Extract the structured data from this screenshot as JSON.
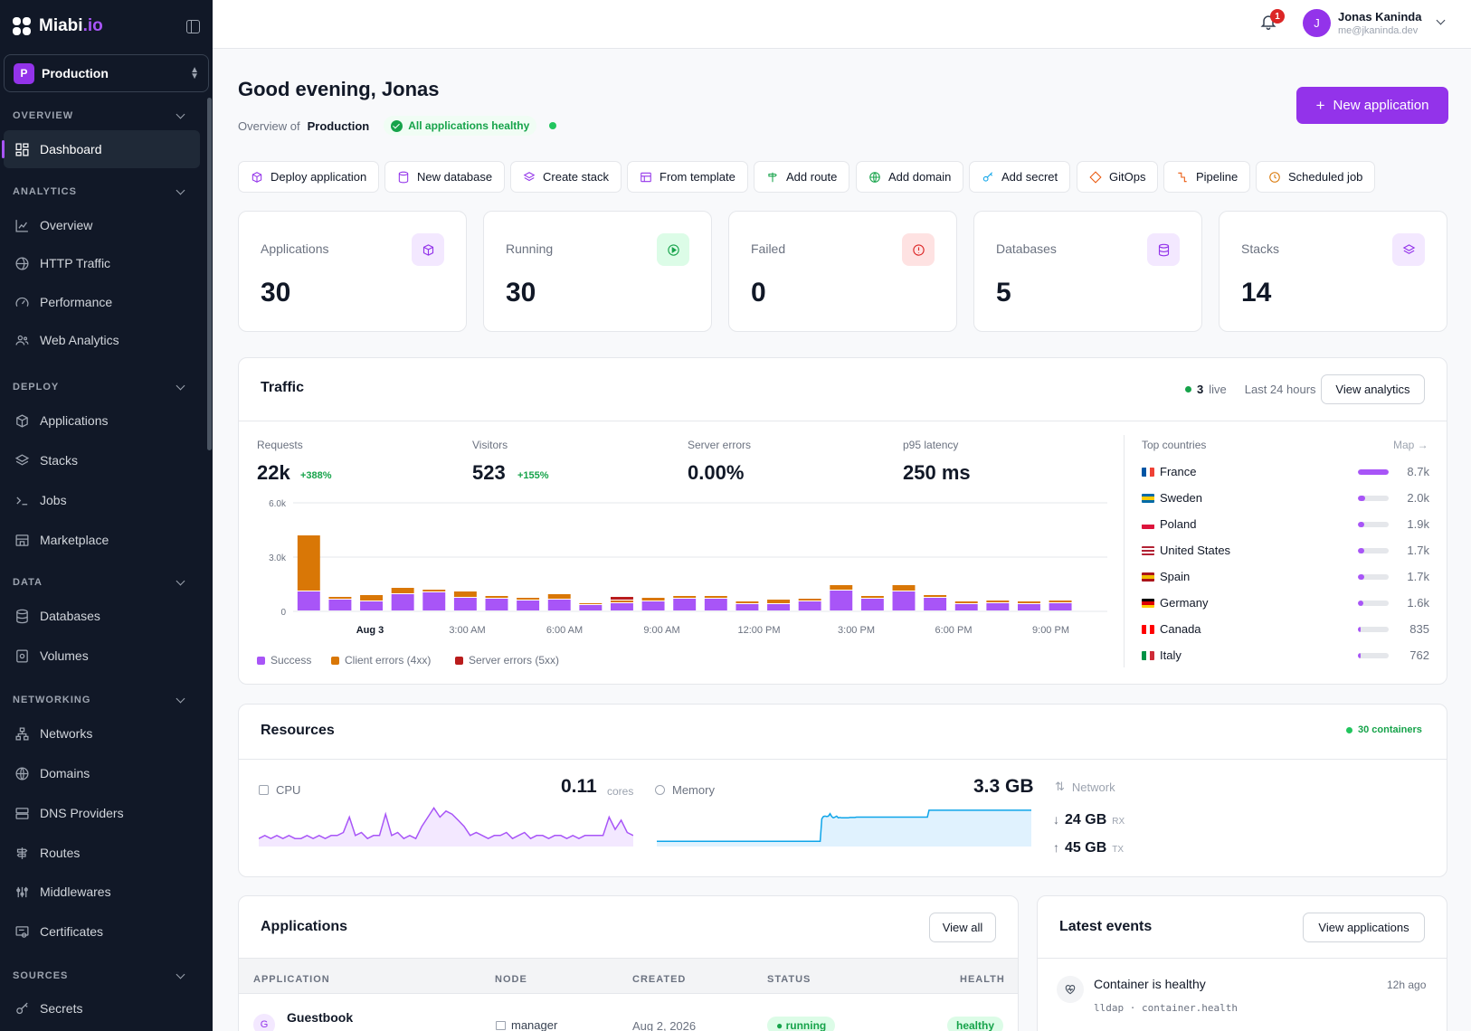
{
  "app": {
    "brand": "Miabi",
    "brand_suffix": ".io"
  },
  "env": {
    "badge": "P",
    "name": "Production"
  },
  "nav": {
    "overview": "OVERVIEW",
    "analytics": "ANALYTICS",
    "deploy": "DEPLOY",
    "data": "DATA",
    "networking": "NETWORKING",
    "sources": "SOURCES",
    "dashboard": "Dashboard",
    "overview_item": "Overview",
    "http_traffic": "HTTP Traffic",
    "performance": "Performance",
    "web_analytics": "Web Analytics",
    "applications": "Applications",
    "stacks": "Stacks",
    "jobs": "Jobs",
    "marketplace": "Marketplace",
    "databases": "Databases",
    "volumes": "Volumes",
    "networks": "Networks",
    "domains": "Domains",
    "dns_providers": "DNS Providers",
    "routes": "Routes",
    "middlewares": "Middlewares",
    "certificates": "Certificates",
    "secrets": "Secrets"
  },
  "topbar": {
    "notification_count": "1",
    "avatar": "J",
    "user_name": "Jonas Kaninda",
    "user_email": "me@jkaninda.dev"
  },
  "header": {
    "greeting": "Good evening, Jonas",
    "overview_of": "Overview of",
    "env": "Production",
    "health": "All applications healthy",
    "new_app": "New application"
  },
  "quick_actions": [
    "Deploy application",
    "New database",
    "Create stack",
    "From template",
    "Add route",
    "Add domain",
    "Add secret",
    "GitOps",
    "Pipeline",
    "Scheduled job"
  ],
  "stats": [
    {
      "label": "Applications",
      "value": "30"
    },
    {
      "label": "Running",
      "value": "30"
    },
    {
      "label": "Failed",
      "value": "0"
    },
    {
      "label": "Databases",
      "value": "5"
    },
    {
      "label": "Stacks",
      "value": "14"
    }
  ],
  "traffic": {
    "title": "Traffic",
    "live_count": "3",
    "live_label": "live",
    "range": "Last 24 hours",
    "view": "View analytics",
    "requests_label": "Requests",
    "requests": "22k",
    "requests_change": "+388%",
    "visitors_label": "Visitors",
    "visitors": "523",
    "visitors_change": "+155%",
    "errors_label": "Server errors",
    "errors": "0.00%",
    "latency_label": "p95 latency",
    "latency": "250 ms",
    "legend_success": "Success",
    "legend_4xx": "Client errors (4xx)",
    "legend_5xx": "Server errors (5xx)",
    "countries_label": "Top countries",
    "map_link": "Map →",
    "countries": [
      {
        "name": "France",
        "value": "8.7k",
        "share": 1.0
      },
      {
        "name": "Sweden",
        "value": "2.0k",
        "share": 0.23
      },
      {
        "name": "Poland",
        "value": "1.9k",
        "share": 0.22
      },
      {
        "name": "United States",
        "value": "1.7k",
        "share": 0.2
      },
      {
        "name": "Spain",
        "value": "1.7k",
        "share": 0.2
      },
      {
        "name": "Germany",
        "value": "1.6k",
        "share": 0.18
      },
      {
        "name": "Canada",
        "value": "835",
        "share": 0.1
      },
      {
        "name": "Italy",
        "value": "762",
        "share": 0.09
      }
    ]
  },
  "chart_data": {
    "type": "bar",
    "stacked": true,
    "ylim": [
      0,
      6000
    ],
    "yticks": [
      "6.0k",
      "3.0k",
      "0"
    ],
    "xticks": [
      "Aug 3",
      "3:00 AM",
      "6:00 AM",
      "9:00 AM",
      "12:00 PM",
      "3:00 PM",
      "6:00 PM",
      "9:00 PM"
    ],
    "series": [
      {
        "name": "Success",
        "color": "#a855f7",
        "values": [
          1100,
          650,
          550,
          950,
          1050,
          750,
          700,
          600,
          650,
          350,
          450,
          550,
          700,
          700,
          400,
          400,
          550,
          1150,
          700,
          1100,
          750,
          400,
          450,
          400,
          450,
          0
        ]
      },
      {
        "name": "Client errors (4xx)",
        "color": "#d97706",
        "values": [
          3100,
          150,
          350,
          350,
          150,
          350,
          150,
          150,
          300,
          100,
          150,
          200,
          150,
          150,
          150,
          250,
          150,
          300,
          150,
          350,
          150,
          150,
          150,
          150,
          150,
          0
        ]
      },
      {
        "name": "Server errors (5xx)",
        "color": "#b91c1c",
        "values": [
          0,
          0,
          0,
          0,
          0,
          0,
          0,
          0,
          0,
          0,
          200,
          0,
          0,
          0,
          0,
          0,
          0,
          0,
          0,
          0,
          0,
          0,
          0,
          0,
          0,
          0
        ]
      }
    ]
  },
  "resources": {
    "title": "Resources",
    "containers": "30 containers",
    "cpu_label": "CPU",
    "cpu_value": "0.11",
    "cpu_unit": "cores",
    "mem_label": "Memory",
    "mem_value": "3.3 GB",
    "net_label": "Network",
    "rx": "24 GB",
    "rx_unit": "RX",
    "tx": "45 GB",
    "tx_unit": "TX",
    "cpu_series": [
      0.02,
      0.03,
      0.02,
      0.03,
      0.02,
      0.03,
      0.02,
      0.02,
      0.03,
      0.02,
      0.03,
      0.02,
      0.03,
      0.03,
      0.04,
      0.09,
      0.03,
      0.04,
      0.02,
      0.03,
      0.03,
      0.1,
      0.03,
      0.04,
      0.02,
      0.03,
      0.02,
      0.06,
      0.09,
      0.12,
      0.09,
      0.11,
      0.1,
      0.08,
      0.06,
      0.03,
      0.04,
      0.03,
      0.02,
      0.03,
      0.03,
      0.04,
      0.02,
      0.03,
      0.04,
      0.02,
      0.03,
      0.03,
      0.02,
      0.03,
      0.03,
      0.02,
      0.03,
      0.02,
      0.03,
      0.03,
      0.03,
      0.03,
      0.09,
      0.05,
      0.08,
      0.04,
      0.03
    ],
    "mem_series": [
      0.1,
      0.1,
      0.1,
      0.1,
      0.1,
      0.1,
      0.1,
      0.1,
      0.1,
      0.1,
      0.1,
      0.1,
      0.1,
      0.1,
      0.1,
      0.1,
      0.1,
      0.1,
      0.1,
      0.1,
      0.1,
      0.1,
      0.1,
      0.1,
      0.1,
      0.1,
      0.1,
      0.1,
      0.1,
      0.1,
      0.1,
      0.1,
      0.1,
      0.1,
      0.1,
      0.1,
      0.1,
      0.1,
      0.1,
      0.1,
      0.1,
      0.1,
      0.1,
      0.1,
      0.1,
      0.1,
      0.1,
      0.1,
      0.1,
      0.1,
      0.1,
      0.1,
      0.1,
      0.1,
      0.1,
      0.1,
      0.1,
      0.1,
      0.1,
      0.1,
      0.1,
      0.1,
      0.1,
      0.1,
      0.1,
      0.1,
      0.1,
      0.1,
      0.1,
      0.1,
      0.1,
      0.1,
      0.1,
      0.1,
      0.1,
      0.1,
      0.1,
      0.1,
      0.1,
      0.1,
      0.1,
      0.1,
      0.1,
      0.1,
      0.1,
      0.1,
      0.1,
      0.1,
      0.1,
      0.1,
      0.1,
      0.1,
      0.1,
      0.1,
      0.1,
      0.1,
      0.1,
      0.1,
      0.1,
      0.1,
      0.75,
      0.82,
      0.83,
      0.82,
      0.83,
      0.9,
      0.82,
      0.78,
      0.8,
      0.83,
      0.78,
      0.79,
      0.78,
      0.78,
      0.78,
      0.78,
      0.78,
      0.79,
      0.79,
      0.79,
      0.79,
      0.8,
      0.8,
      0.8,
      0.8,
      0.8,
      0.8,
      0.8,
      0.8,
      0.8,
      0.8,
      0.8,
      0.8,
      0.8,
      0.8,
      0.8,
      0.8,
      0.8,
      0.8,
      0.8,
      0.8,
      0.8,
      0.8,
      0.8,
      0.8,
      0.8,
      0.8,
      0.8,
      0.8,
      0.8,
      0.8,
      0.8,
      0.8,
      0.8,
      0.8,
      0.8,
      0.8,
      0.8,
      0.8,
      0.8,
      0.8,
      0.8,
      0.8,
      0.8,
      0.8,
      1.0,
      1.0,
      1.0,
      1.0,
      1.0,
      1.0,
      1.0,
      1.0,
      1.0,
      1.0,
      1.0,
      1.0,
      1.0,
      1.0,
      1.0,
      1.0,
      1.0,
      1.0,
      1.0,
      1.0,
      1.0,
      1.0,
      1.0,
      1.0,
      1.0,
      1.0,
      1.0,
      1.0,
      1.0,
      1.0,
      1.0,
      1.0,
      1.0,
      1.0,
      1.0,
      1.0,
      1.0,
      1.0,
      1.0,
      1.0,
      1.0,
      1.0,
      1.0,
      1.0,
      1.0,
      1.0,
      1.0,
      1.0,
      1.0,
      1.0,
      1.0,
      1.0,
      1.0,
      1.0,
      1.0,
      1.0,
      1.0,
      1.0,
      1.0,
      1.0,
      1.0,
      1.0,
      1.0
    ]
  },
  "applications": {
    "title": "Applications",
    "view_all": "View all",
    "columns": [
      "APPLICATION",
      "NODE",
      "CREATED",
      "STATUS",
      "HEALTH"
    ],
    "rows": [
      {
        "avatar": "G",
        "name": "Guestbook",
        "node": "manager",
        "created": "Aug 2, 2026",
        "status": "running",
        "health": "healthy"
      }
    ]
  },
  "events": {
    "title": "Latest events",
    "view": "View applications",
    "items": [
      {
        "title": "Container is healthy",
        "time": "12h ago",
        "meta": "lldap · container.health"
      }
    ]
  },
  "colors": {
    "accent": "#9333ea",
    "success": "#16a34a",
    "sidebar": "#111827"
  }
}
